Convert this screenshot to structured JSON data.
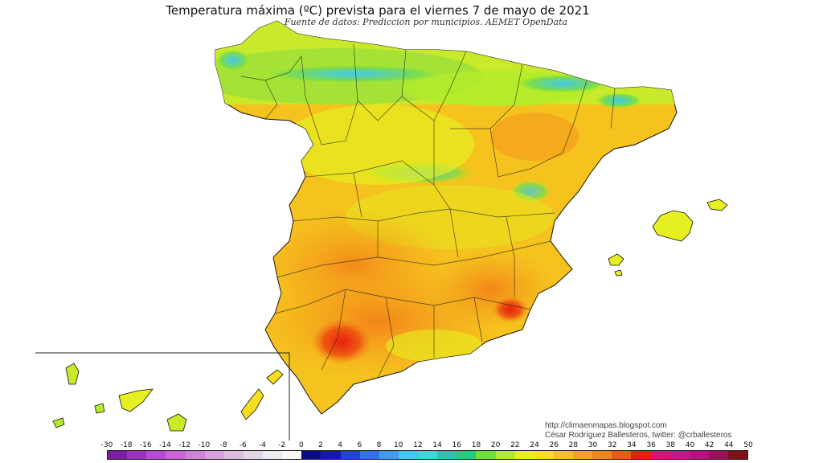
{
  "header": {
    "title": "Temperatura máxima (ºC) prevista para el viernes 7 de mayo de 2021",
    "subtitle": "Fuente de datos: Prediccion por municipios. AEMET OpenData"
  },
  "credits": {
    "url": "http://climaenmapas.blogspot.com",
    "author": "César Rodríguez Ballesteros, twitter: @crballesteros"
  },
  "legend": {
    "labels": [
      "-30",
      "-18",
      "-16",
      "-14",
      "-12",
      "-10",
      "-8",
      "-6",
      "-4",
      "-2",
      "0",
      "2",
      "4",
      "6",
      "8",
      "10",
      "12",
      "14",
      "16",
      "18",
      "20",
      "22",
      "24",
      "26",
      "28",
      "30",
      "32",
      "34",
      "36",
      "38",
      "40",
      "42",
      "44",
      "50"
    ],
    "colors": [
      "#7a1fa0",
      "#9b30c0",
      "#b84ad6",
      "#c964d9",
      "#cf84d8",
      "#d6a2dc",
      "#dcbde0",
      "#e2d6e6",
      "#ececec",
      "#f8f8f8",
      "#0a0a8c",
      "#1515c0",
      "#2040e6",
      "#2f6ff0",
      "#3f9bf5",
      "#41c8f0",
      "#2ee0d8",
      "#27c6b0",
      "#1fd080",
      "#6fe036",
      "#b2ec2a",
      "#e6f020",
      "#f5df1e",
      "#f6c21e",
      "#f5a21c",
      "#f28418",
      "#ef5a10",
      "#e81e10",
      "#e0107a",
      "#d0108a",
      "#bb0e80",
      "#9e0c5a",
      "#801018"
    ]
  },
  "map": {
    "regions": [
      "Peninsula iberica",
      "Islas Baleares",
      "Islas Canarias"
    ],
    "palette": {
      "cool": "#41c8f0",
      "mild": "#7cdc4a",
      "warm": "#e6f020",
      "hot": "#f6c21e",
      "very_hot": "#f28418",
      "extreme": "#e81e10"
    }
  }
}
